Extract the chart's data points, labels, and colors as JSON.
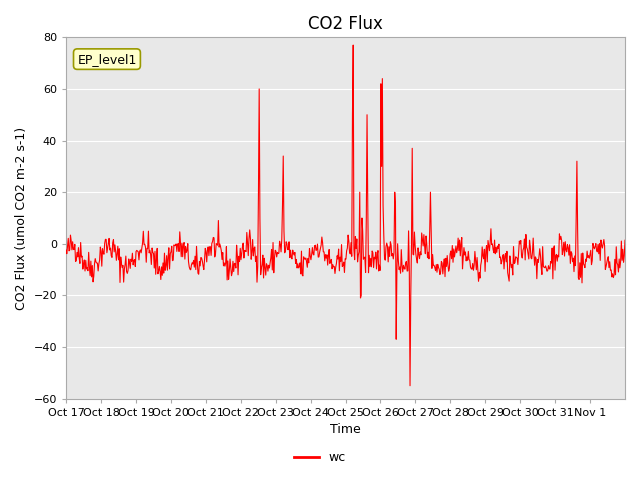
{
  "title": "CO2 Flux",
  "xlabel": "Time",
  "ylabel": "CO2 Flux (umol CO2 m-2 s-1)",
  "ylim": [
    -60,
    80
  ],
  "yticks": [
    -60,
    -40,
    -20,
    0,
    20,
    40,
    60,
    80
  ],
  "line_color": "red",
  "line_width": 0.8,
  "legend_label": "wc",
  "annotation_text": "EP_level1",
  "plot_bg_color": "#e8e8e8",
  "x_tick_labels": [
    "Oct 17",
    "Oct 18",
    "Oct 19",
    "Oct 20",
    "Oct 21",
    "Oct 22",
    "Oct 23",
    "Oct 24",
    "Oct 25",
    "Oct 26",
    "Oct 27",
    "Oct 28",
    "Oct 29",
    "Oct 30",
    "Oct 31",
    "Nov 1"
  ],
  "title_fontsize": 12,
  "label_fontsize": 9,
  "tick_fontsize": 8
}
